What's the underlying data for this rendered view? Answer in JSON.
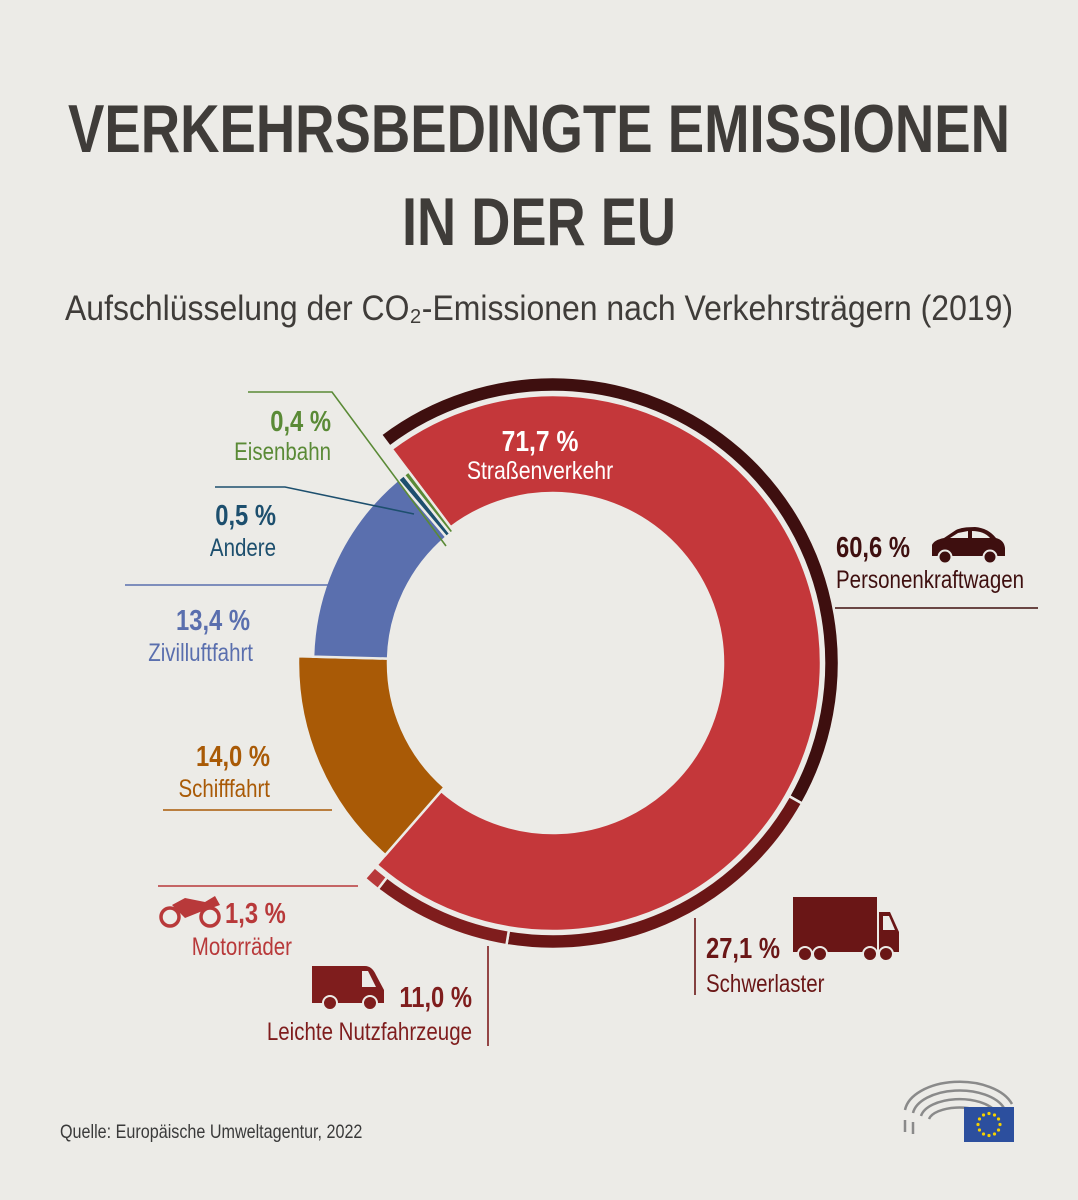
{
  "title_line1": "VERKEHRSBEDINGTE EMISSIONEN",
  "title_line2": "IN DER EU",
  "subtitle": "Aufschlüsselung der CO₂-Emissionen nach Verkehrsträgern (2019)",
  "source": "Quelle: Europäische Umweltagentur, 2022",
  "chart_data": {
    "type": "pie",
    "variant": "donut-with-outer-breakdown-ring",
    "title": "VERKEHRSBEDINGTE EMISSIONEN IN DER EU",
    "subtitle": "Aufschlüsselung der CO₂-Emissionen nach Verkehrsträgern (2019)",
    "unit": "%",
    "series": [
      {
        "ring": "inner",
        "slices": [
          {
            "label": "Straßenverkehr",
            "value": 71.7,
            "value_label": "71,7 %",
            "color": "#c4373a"
          },
          {
            "label": "Schifffahrt",
            "value": 14.0,
            "value_label": "14,0 %",
            "color": "#a95a06"
          },
          {
            "label": "Zivilluftfahrt",
            "value": 13.4,
            "value_label": "13,4 %",
            "color": "#5a6fae"
          },
          {
            "label": "Andere",
            "value": 0.5,
            "value_label": "0,5 %",
            "color": "#1d4f6e"
          },
          {
            "label": "Eisenbahn",
            "value": 0.4,
            "value_label": "0,4 %",
            "color": "#5a8a36"
          }
        ]
      },
      {
        "ring": "outer",
        "parent": "Straßenverkehr",
        "slices": [
          {
            "label": "Personenkraftwagen",
            "value": 60.6,
            "value_label": "60,6 %",
            "color": "#3e0f0f",
            "icon": "car-icon"
          },
          {
            "label": "Schwerlaster",
            "value": 27.1,
            "value_label": "27,1 %",
            "color": "#6a1616",
            "icon": "truck-icon"
          },
          {
            "label": "Leichte Nutzfahrzeuge",
            "value": 11.0,
            "value_label": "11,0 %",
            "color": "#7f1d1d",
            "icon": "van-icon"
          },
          {
            "label": "Motorräder",
            "value": 1.3,
            "value_label": "1,3 %",
            "color": "#b8393a",
            "icon": "motorcycle-icon"
          }
        ]
      }
    ]
  },
  "logo": {
    "name": "european-parliament-logo",
    "flag_color": "#2c4f9e",
    "star_color": "#f5d000"
  }
}
